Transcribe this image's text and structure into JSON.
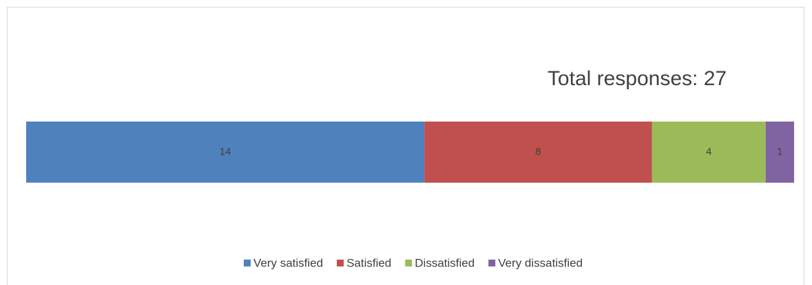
{
  "chart_data": {
    "type": "stacked-bar",
    "title": "Total responses: 27",
    "series": [
      {
        "name": "Very satisfied",
        "color": "#4f81bd",
        "values": [
          14
        ]
      },
      {
        "name": "Satisfied",
        "color": "#c0504d",
        "values": [
          8
        ]
      },
      {
        "name": "Dissatisfied",
        "color": "#9bbb59",
        "values": [
          4
        ]
      },
      {
        "name": "Very dissatisfied",
        "color": "#8064a2",
        "values": [
          1
        ]
      }
    ],
    "legend": "bottom"
  }
}
